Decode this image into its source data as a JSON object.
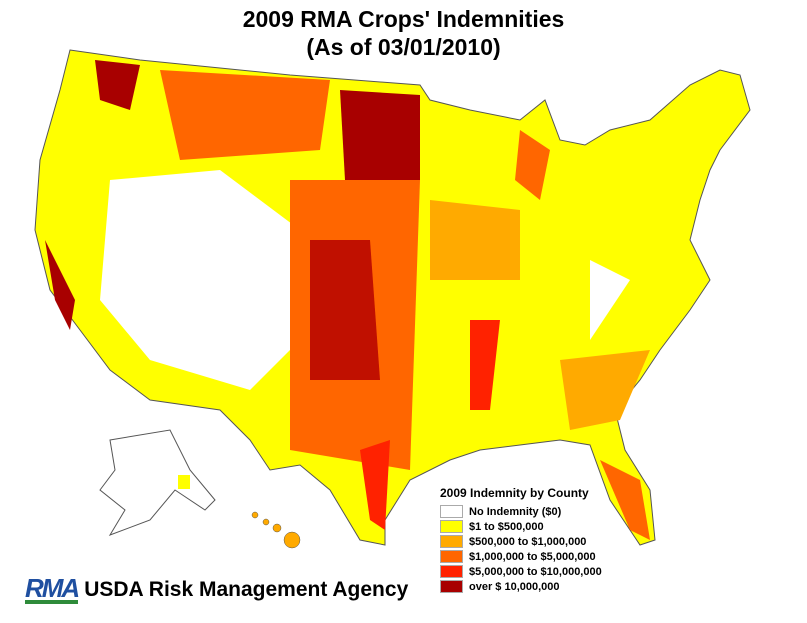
{
  "title": "2009 RMA Crops' Indemnities",
  "subtitle": "(As of 03/01/2010)",
  "legend": {
    "title": "2009 Indemnity by County",
    "items": [
      {
        "label": "No Indemnity ($0)",
        "color": "#ffffff"
      },
      {
        "label": "$1 to $500,000",
        "color": "#ffff00"
      },
      {
        "label": "$500,000 to $1,000,000",
        "color": "#ffaa00"
      },
      {
        "label": "$1,000,000 to $5,000,000",
        "color": "#ff6600"
      },
      {
        "label": "$5,000,000 to $10,000,000",
        "color": "#ff2200"
      },
      {
        "label": "over $ 10,000,000",
        "color": "#a80000"
      }
    ]
  },
  "logo": {
    "mark": "RMA",
    "agency": "USDA Risk Management Agency",
    "colors": {
      "blue": "#1f4fa0",
      "green": "#2e8b3a"
    }
  }
}
